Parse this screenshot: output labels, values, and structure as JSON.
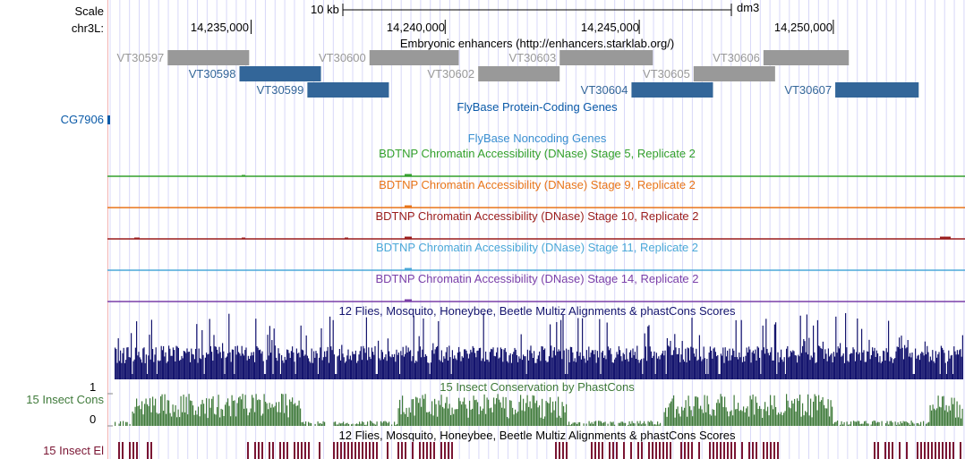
{
  "browser": {
    "assembly": "dm3",
    "chrom_label": "chr3L:",
    "scale_label": "Scale",
    "scale_bar_text": "10 kb",
    "positions": [
      "14,235,000",
      "14,240,000",
      "14,245,000",
      "14,250,000"
    ]
  },
  "colors": {
    "grid": "#d8d8f8",
    "enhancer_gray": "#999999",
    "enhancer_blue": "#336699",
    "flybase_blue": "#0a5aa8",
    "noncoding_blue": "#3a8fd0",
    "stage5": "#33a02c",
    "stage9": "#e8751a",
    "stage10": "#9a1c1c",
    "stage11": "#4ba8d8",
    "stage14": "#7a3fa8",
    "multiz": "#14146e",
    "phastcons": "#3f7a3a",
    "elements": "#7a1533"
  },
  "tracks": {
    "enhancers": {
      "title": "Embryonic enhancers (http://enhancers.starklab.org/)",
      "features": [
        {
          "name": "VT30597",
          "start": 14232850,
          "end": 14234950,
          "status": "gray"
        },
        {
          "name": "VT30598",
          "start": 14234700,
          "end": 14236800,
          "status": "blue"
        },
        {
          "name": "VT30599",
          "start": 14236450,
          "end": 14238550,
          "status": "blue"
        },
        {
          "name": "VT30600",
          "start": 14238050,
          "end": 14240350,
          "status": "gray"
        },
        {
          "name": "VT30602",
          "start": 14240850,
          "end": 14242950,
          "status": "gray"
        },
        {
          "name": "VT30603",
          "start": 14242950,
          "end": 14245350,
          "status": "gray"
        },
        {
          "name": "VT30604",
          "start": 14244800,
          "end": 14246900,
          "status": "blue"
        },
        {
          "name": "VT30605",
          "start": 14246400,
          "end": 14248500,
          "status": "gray"
        },
        {
          "name": "VT30606",
          "start": 14248200,
          "end": 14250400,
          "status": "gray"
        },
        {
          "name": "VT30607",
          "start": 14250050,
          "end": 14252200,
          "status": "blue"
        }
      ]
    },
    "coding": {
      "title": "FlyBase Protein-Coding Genes",
      "gene": "CG7906"
    },
    "noncoding": {
      "title": "FlyBase Noncoding Genes"
    },
    "dnase": [
      {
        "title": "BDTNP Chromatin Accessibility (DNase) Stage 5, Replicate 2",
        "color_key": "stage5"
      },
      {
        "title": "BDTNP Chromatin Accessibility (DNase) Stage 9, Replicate 2",
        "color_key": "stage9"
      },
      {
        "title": "BDTNP Chromatin Accessibility (DNase) Stage 10, Replicate 2",
        "color_key": "stage10"
      },
      {
        "title": "BDTNP Chromatin Accessibility (DNase) Stage 11, Replicate 2",
        "color_key": "stage11"
      },
      {
        "title": "BDTNP Chromatin Accessibility (DNase) Stage 14, Replicate 2",
        "color_key": "stage14"
      }
    ],
    "multiz": {
      "title": "12 Flies, Mosquito, Honeybee, Beetle Multiz Alignments & phastCons Scores"
    },
    "cons": {
      "title": "15 Insect Conservation by PhastCons",
      "label": "15 Insect Cons",
      "axis_top": "1",
      "axis_bottom": "0"
    },
    "elements": {
      "title": "12 Flies, Mosquito, Honeybee, Beetle Multiz Alignments & phastCons Scores",
      "label": "15 Insect El"
    }
  }
}
